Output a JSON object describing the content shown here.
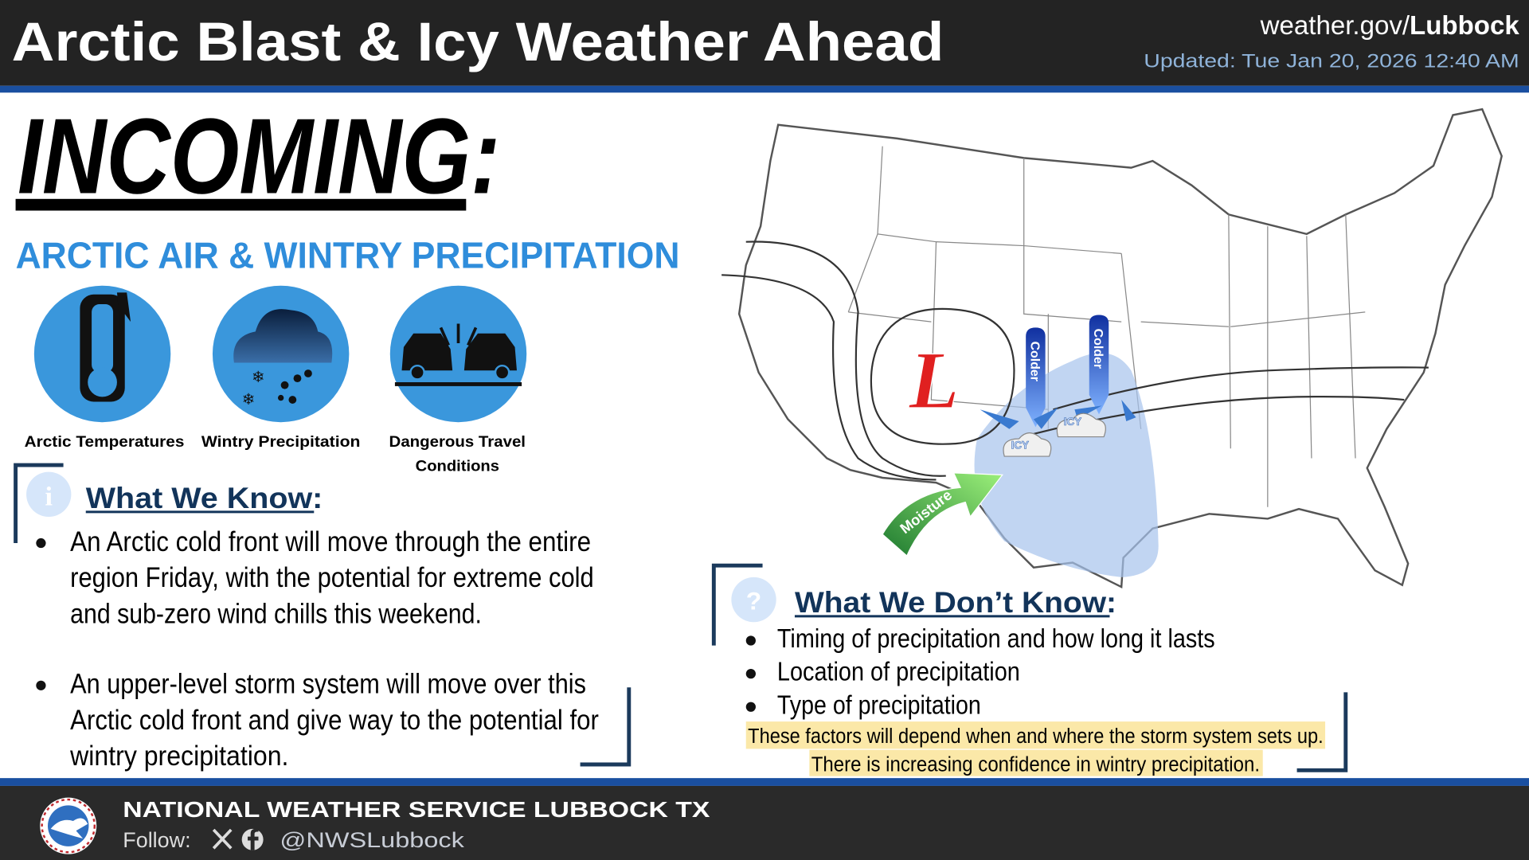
{
  "header": {
    "title": "Arctic Blast & Icy Weather Ahead",
    "site_prefix": "weather.gov/",
    "site_bold": "Lubbock",
    "updated": "Updated: Tue Jan 20, 2026 12:40 AM"
  },
  "headline": "INCOMING:",
  "subheadline": "ARCTIC AIR & WINTRY PRECIPITATION",
  "icons": [
    {
      "label": [
        "Arctic Temperatures"
      ]
    },
    {
      "label": [
        "Wintry Precipitation"
      ]
    },
    {
      "label": [
        "Dangerous Travel",
        "Conditions"
      ]
    }
  ],
  "know": {
    "heading": "What We Know:",
    "bullets": [
      [
        "An Arctic cold front will move through the entire",
        "region Friday, with the potential for extreme cold",
        "and sub-zero wind chills this weekend."
      ],
      [
        "An upper-level storm system will move over this",
        "Arctic cold front and give way to the potential for",
        "wintry precipitation."
      ]
    ]
  },
  "map": {
    "low": "L",
    "arrows": [
      "Colder",
      "Colder"
    ],
    "icy": [
      "ICY",
      "ICY"
    ],
    "moisture": "Moisture"
  },
  "dont_know": {
    "heading": "What We Don’t Know:",
    "bullets": [
      "Timing of precipitation and how long it lasts",
      "Location of precipitation",
      "Type of precipitation"
    ],
    "note": [
      "These factors will depend when and where the storm system sets up.",
      "There is increasing confidence in wintry precipitation."
    ]
  },
  "footer": {
    "org": "NATIONAL WEATHER SERVICE LUBBOCK TX",
    "follow": "Follow:",
    "handle": "@NWSLubbock"
  }
}
